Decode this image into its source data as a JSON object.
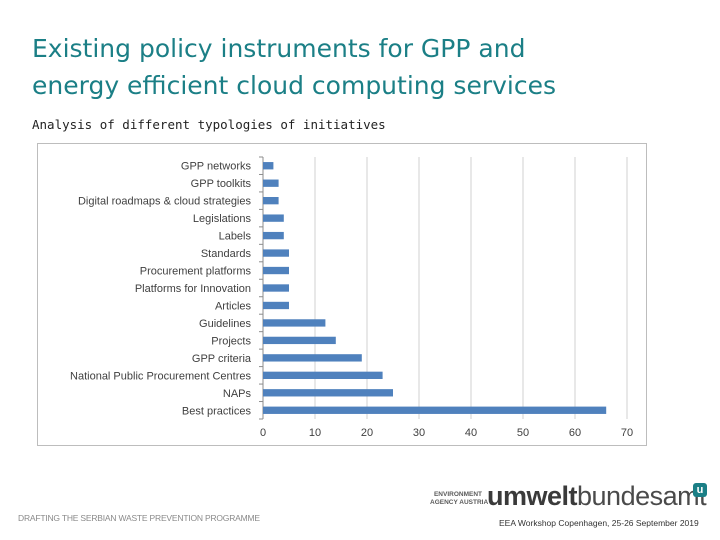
{
  "slide": {
    "title_line1": "Existing policy instruments for GPP and",
    "title_line2": "energy efficient cloud computing services",
    "subtitle": "Analysis of different typologies of initiatives"
  },
  "footer": {
    "left_text": "DRAFTING THE SERBIAN WASTE PREVENTION PROGRAMME",
    "agency_text": "ENVIRONMENT\nAGENCY AUSTRIA",
    "brand_bold": "umwelt",
    "brand_regular": "bundesamt",
    "brand_mark": "u",
    "event_text": "EEA Workshop Copenhagen, 25-26 September 2019"
  },
  "colors": {
    "accent": "#1b7f86",
    "bar": "#4f81bd"
  },
  "chart_data": {
    "type": "bar",
    "orientation": "horizontal",
    "categories": [
      "GPP networks",
      "GPP toolkits",
      "Digital roadmaps & cloud strategies",
      "Legislations",
      "Labels",
      "Standards",
      "Procurement platforms",
      "Platforms for Innovation",
      "Articles",
      "Guidelines",
      "Projects",
      "GPP criteria",
      "National Public Procurement Centres",
      "NAPs",
      "Best practices"
    ],
    "values": [
      2,
      3,
      3,
      4,
      4,
      5,
      5,
      5,
      5,
      12,
      14,
      19,
      23,
      25,
      66
    ],
    "xlim": [
      0,
      70
    ],
    "xticks": [
      0,
      10,
      20,
      30,
      40,
      50,
      60,
      70
    ],
    "grid": true
  }
}
